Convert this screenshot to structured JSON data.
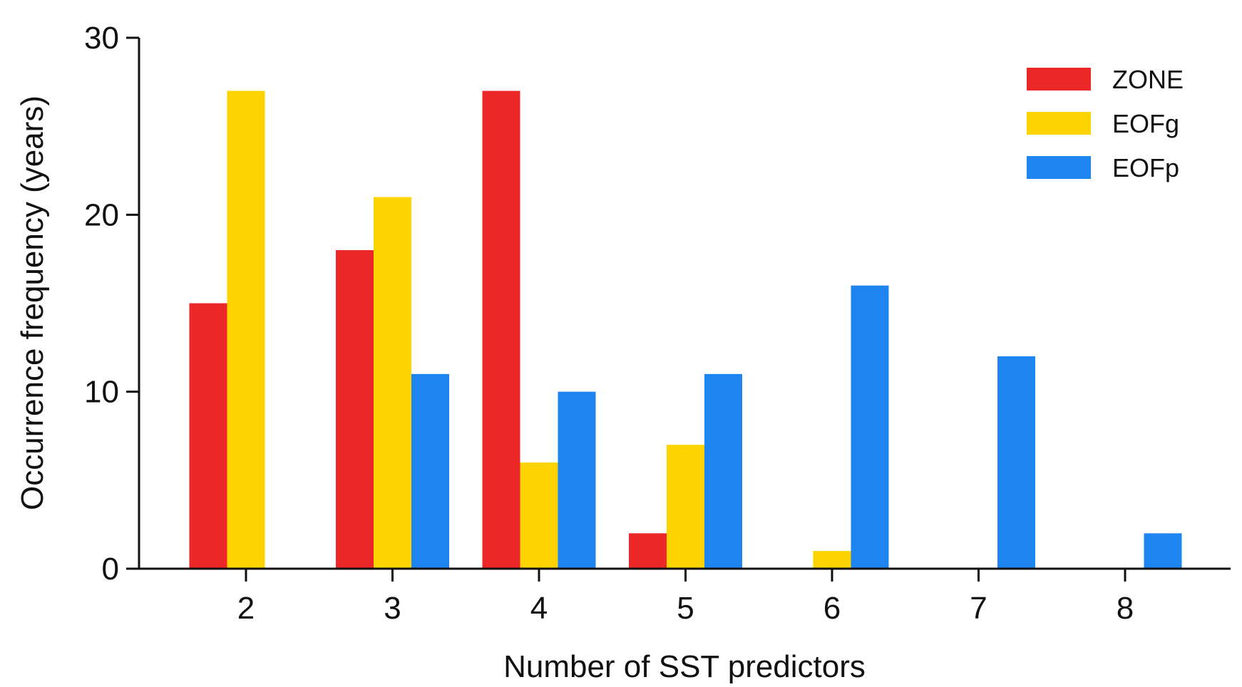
{
  "chart_data": {
    "type": "bar",
    "title": "",
    "xlabel": "Number of SST predictors",
    "ylabel": "Occurrence frequency (years)",
    "categories": [
      "2",
      "3",
      "4",
      "5",
      "6",
      "7",
      "8"
    ],
    "yticks": [
      "0",
      "10",
      "20",
      "30"
    ],
    "ylim": [
      0,
      30
    ],
    "grid": false,
    "legend_position": "top-right",
    "series": [
      {
        "name": "ZONE",
        "color": "#ec2728",
        "values": [
          15,
          18,
          27,
          2,
          0,
          0,
          0
        ]
      },
      {
        "name": "EOFg",
        "color": "#fdd401",
        "values": [
          27,
          21,
          6,
          7,
          1,
          0,
          0
        ]
      },
      {
        "name": "EOFp",
        "color": "#1e84ef",
        "values": [
          0,
          11,
          10,
          11,
          16,
          12,
          2
        ]
      }
    ]
  }
}
